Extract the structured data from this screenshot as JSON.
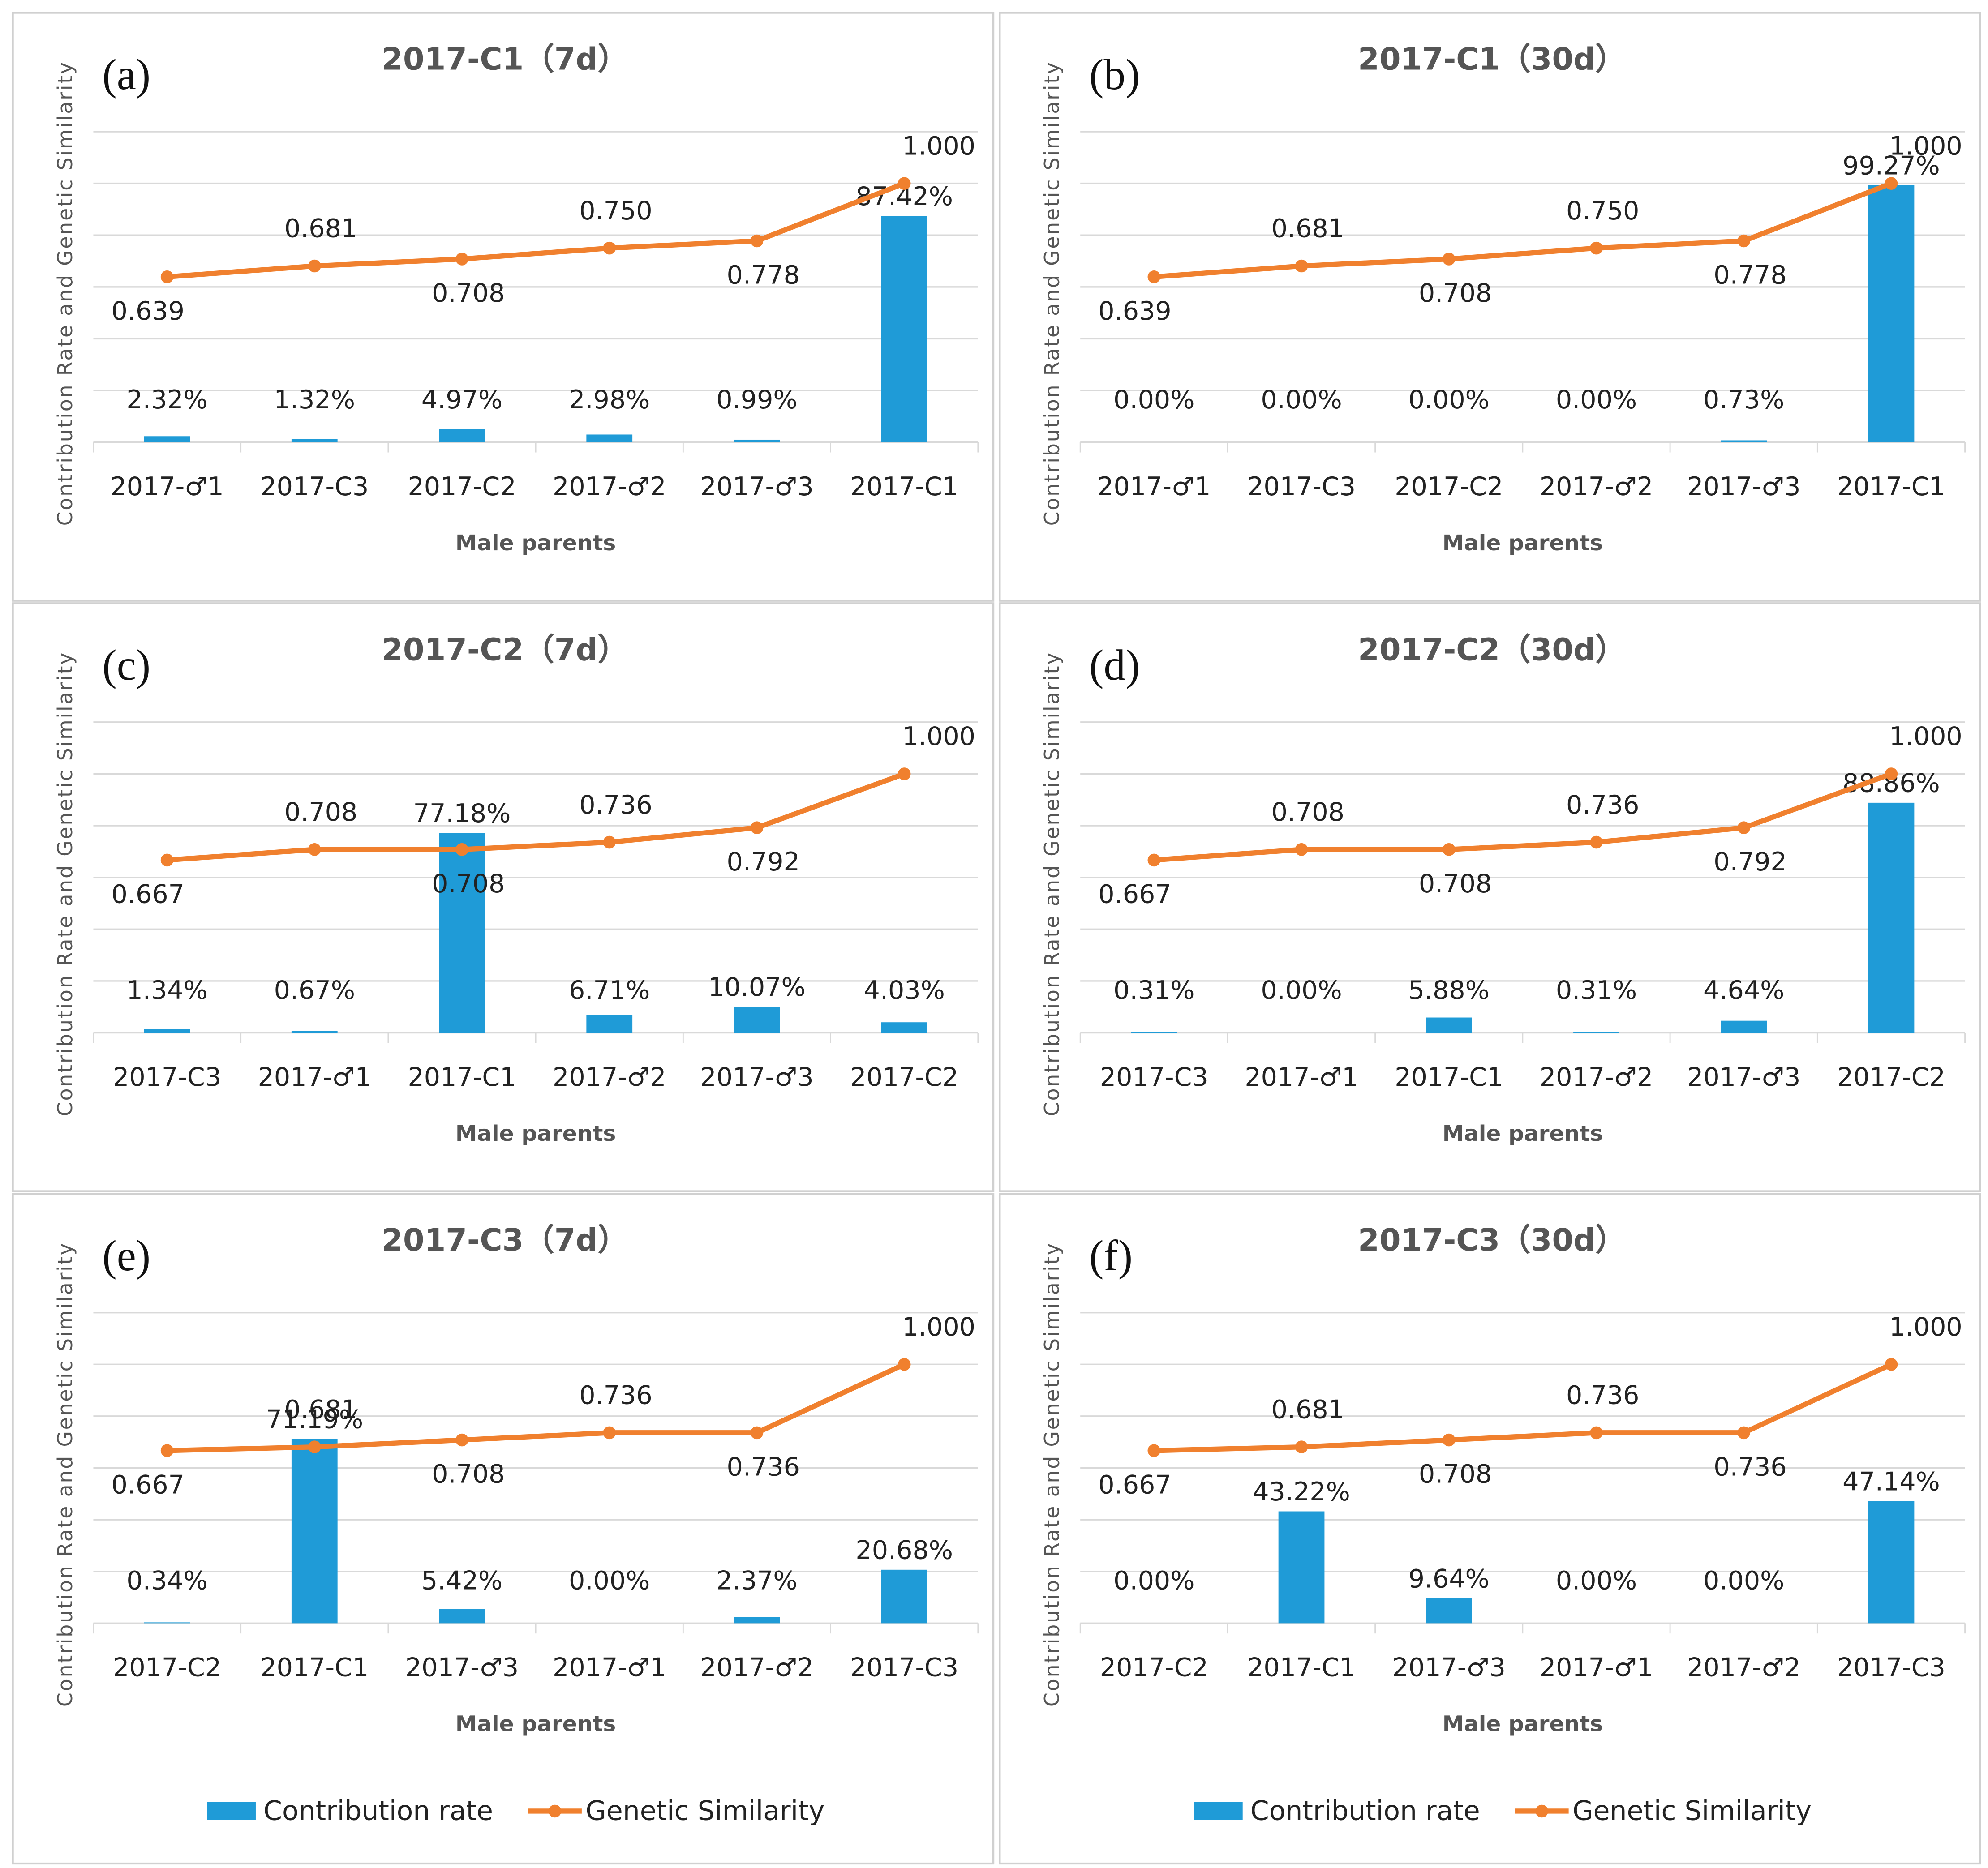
{
  "chart_data": [
    {
      "type": "bar+line",
      "label": "(a)",
      "title": "2017-C1（7d）",
      "x_label": "Male parents",
      "y_label": "Contribution Rate and Genetic Similarity",
      "categories": [
        "2017-♂1",
        "2017-C3",
        "2017-C2",
        "2017-♂2",
        "2017-♂3",
        "2017-C1"
      ],
      "ylim": [
        0,
        120
      ],
      "yticks": [
        0,
        20,
        40,
        60,
        80,
        100,
        120
      ],
      "y2lim": [
        0,
        1.2
      ],
      "grid": true,
      "series": [
        {
          "name": "Contribution rate",
          "type": "bar",
          "color": "#1f9bd7",
          "values": [
            2.32,
            1.32,
            4.97,
            2.98,
            0.99,
            87.42
          ],
          "value_labels": [
            "2.32%",
            "1.32%",
            "4.97%",
            "2.98%",
            "0.99%",
            "87.42%"
          ]
        },
        {
          "name": "Genetic Similarity",
          "type": "line",
          "axis": "y2",
          "color": "#f0802e",
          "values": [
            0.639,
            0.681,
            0.708,
            0.75,
            0.778,
            1.0
          ],
          "value_labels": [
            "0.639",
            "0.681",
            "0.708",
            "0.750",
            "0.778",
            "1.000"
          ]
        }
      ]
    },
    {
      "type": "bar+line",
      "label": "(b)",
      "title": "2017-C1（30d）",
      "x_label": "Male parents",
      "y_label": "Contribution Rate and Genetic Similarity",
      "categories": [
        "2017-♂1",
        "2017-C3",
        "2017-C2",
        "2017-♂2",
        "2017-♂3",
        "2017-C1"
      ],
      "ylim": [
        0,
        120
      ],
      "yticks": [
        0,
        20,
        40,
        60,
        80,
        100,
        120
      ],
      "y2lim": [
        0,
        1.2
      ],
      "grid": true,
      "series": [
        {
          "name": "Contribution rate",
          "type": "bar",
          "color": "#1f9bd7",
          "values": [
            0,
            0,
            0,
            0,
            0.73,
            99.27
          ],
          "value_labels": [
            "0.00%",
            "0.00%",
            "0.00%",
            "0.00%",
            "0.73%",
            "99.27%"
          ]
        },
        {
          "name": "Genetic Similarity",
          "type": "line",
          "axis": "y2",
          "color": "#f0802e",
          "values": [
            0.639,
            0.681,
            0.708,
            0.75,
            0.778,
            1.0
          ],
          "value_labels": [
            "0.639",
            "0.681",
            "0.708",
            "0.750",
            "0.778",
            "1.000"
          ]
        }
      ]
    },
    {
      "type": "bar+line",
      "label": "(c)",
      "title": "2017-C2（7d）",
      "x_label": "Male parents",
      "y_label": "Contribution Rate and Genetic Similarity",
      "categories": [
        "2017-C3",
        "2017-♂1",
        "2017-C1",
        "2017-♂2",
        "2017-♂3",
        "2017-C2"
      ],
      "ylim": [
        0,
        120
      ],
      "yticks": [
        0,
        20,
        40,
        60,
        80,
        100,
        120
      ],
      "y2lim": [
        0,
        1.2
      ],
      "grid": true,
      "series": [
        {
          "name": "Contribution rate",
          "type": "bar",
          "color": "#1f9bd7",
          "values": [
            1.34,
            0.67,
            77.18,
            6.71,
            10.07,
            4.03
          ],
          "value_labels": [
            "1.34%",
            "0.67%",
            "77.18%",
            "6.71%",
            "10.07%",
            "4.03%"
          ]
        },
        {
          "name": "Genetic Similarity",
          "type": "line",
          "axis": "y2",
          "color": "#f0802e",
          "values": [
            0.667,
            0.708,
            0.708,
            0.736,
            0.792,
            1.0
          ],
          "value_labels": [
            "0.667",
            "0.708",
            "0.708",
            "0.736",
            "0.792",
            "1.000"
          ]
        }
      ]
    },
    {
      "type": "bar+line",
      "label": "(d)",
      "title": "2017-C2（30d）",
      "x_label": "Male parents",
      "y_label": "Contribution Rate and Genetic Similarity",
      "categories": [
        "2017-C3",
        "2017-♂1",
        "2017-C1",
        "2017-♂2",
        "2017-♂3",
        "2017-C2"
      ],
      "ylim": [
        0,
        120
      ],
      "yticks": [
        0,
        20,
        40,
        60,
        80,
        100,
        120
      ],
      "y2lim": [
        0,
        1.2
      ],
      "grid": true,
      "series": [
        {
          "name": "Contribution rate",
          "type": "bar",
          "color": "#1f9bd7",
          "values": [
            0.31,
            0,
            5.88,
            0.31,
            4.64,
            88.86
          ],
          "value_labels": [
            "0.31%",
            "0.00%",
            "5.88%",
            "0.31%",
            "4.64%",
            "88.86%"
          ]
        },
        {
          "name": "Genetic Similarity",
          "type": "line",
          "axis": "y2",
          "color": "#f0802e",
          "values": [
            0.667,
            0.708,
            0.708,
            0.736,
            0.792,
            1.0
          ],
          "value_labels": [
            "0.667",
            "0.708",
            "0.708",
            "0.736",
            "0.792",
            "1.000"
          ]
        }
      ]
    },
    {
      "type": "bar+line",
      "label": "(e)",
      "title": "2017-C3（7d）",
      "x_label": "Male parents",
      "y_label": "Contribution Rate and Genetic Similarity",
      "categories": [
        "2017-C2",
        "2017-C1",
        "2017-♂3",
        "2017-♂1",
        "2017-♂2",
        "2017-C3"
      ],
      "ylim": [
        0,
        120
      ],
      "yticks": [
        0,
        20,
        40,
        60,
        80,
        100,
        120
      ],
      "y2lim": [
        0,
        1.2
      ],
      "grid": true,
      "legend": "bottom",
      "series": [
        {
          "name": "Contribution rate",
          "type": "bar",
          "color": "#1f9bd7",
          "values": [
            0.34,
            71.19,
            5.42,
            0,
            2.37,
            20.68
          ],
          "value_labels": [
            "0.34%",
            "71.19%",
            "5.42%",
            "0.00%",
            "2.37%",
            "20.68%"
          ]
        },
        {
          "name": "Genetic Similarity",
          "type": "line",
          "axis": "y2",
          "color": "#f0802e",
          "values": [
            0.667,
            0.681,
            0.708,
            0.736,
            0.736,
            1.0
          ],
          "value_labels": [
            "0.667",
            "0.681",
            "0.708",
            "0.736",
            "0.736",
            "1.000"
          ]
        }
      ]
    },
    {
      "type": "bar+line",
      "label": "(f)",
      "title": "2017-C3（30d）",
      "x_label": "Male parents",
      "y_label": "Contribution Rate and Genetic Similarity",
      "categories": [
        "2017-C2",
        "2017-C1",
        "2017-♂3",
        "2017-♂1",
        "2017-♂2",
        "2017-C3"
      ],
      "ylim": [
        0,
        120
      ],
      "yticks": [
        0,
        20,
        40,
        60,
        80,
        100,
        120
      ],
      "y2lim": [
        0,
        1.2
      ],
      "grid": true,
      "legend": "bottom",
      "series": [
        {
          "name": "Contribution rate",
          "type": "bar",
          "color": "#1f9bd7",
          "values": [
            0,
            43.22,
            9.64,
            0,
            0,
            47.14
          ],
          "value_labels": [
            "0.00%",
            "43.22%",
            "9.64%",
            "0.00%",
            "0.00%",
            "47.14%"
          ]
        },
        {
          "name": "Genetic Similarity",
          "type": "line",
          "axis": "y2",
          "color": "#f0802e",
          "values": [
            0.667,
            0.681,
            0.708,
            0.736,
            0.736,
            1.0
          ],
          "value_labels": [
            "0.667",
            "0.681",
            "0.708",
            "0.736",
            "0.736",
            "1.000"
          ]
        }
      ]
    }
  ]
}
